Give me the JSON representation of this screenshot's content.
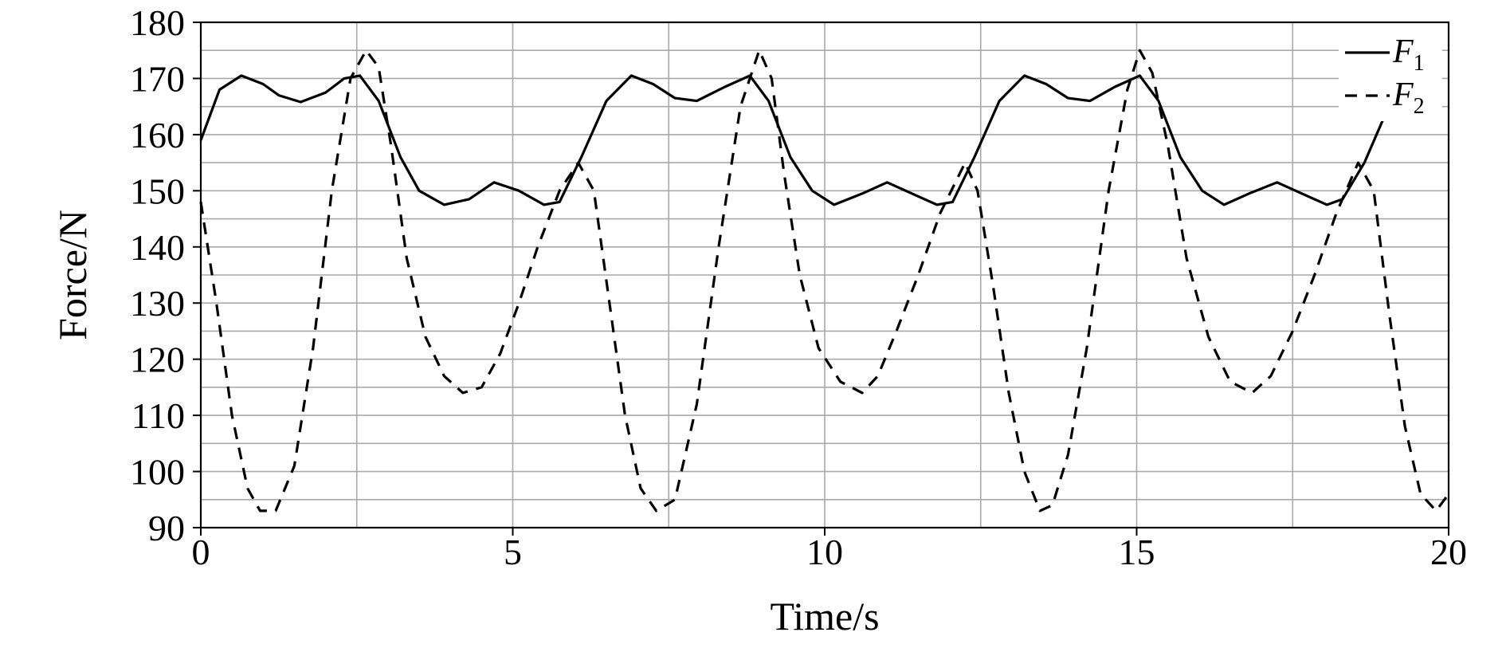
{
  "chart_data": {
    "type": "line",
    "title": "",
    "xlabel": "Time/s",
    "ylabel": "Force/N",
    "xlim": [
      0,
      20
    ],
    "ylim": [
      90,
      180
    ],
    "x_ticks": [
      0,
      5,
      10,
      15,
      20
    ],
    "x_tick_labels": [
      "0",
      "5",
      "10",
      "15",
      "20"
    ],
    "y_ticks": [
      90,
      100,
      110,
      120,
      130,
      140,
      150,
      160,
      170,
      180
    ],
    "y_tick_labels": [
      "90",
      "100",
      "110",
      "120",
      "130",
      "140",
      "150",
      "160",
      "170",
      "180"
    ],
    "grid": true,
    "legend_position": "top-right",
    "series": [
      {
        "name": "F",
        "name_subscript": "1",
        "style": "solid",
        "color": "#000000",
        "x": [
          0,
          0.3,
          0.65,
          1.0,
          1.25,
          1.6,
          2.0,
          2.3,
          2.55,
          2.85,
          3.2,
          3.5,
          3.9,
          4.3,
          4.7,
          5.1,
          5.5,
          5.75,
          6.1,
          6.5,
          6.9,
          7.25,
          7.6,
          7.95,
          8.4,
          8.8,
          9.1,
          9.45,
          9.8,
          10.15,
          10.6,
          11.0,
          11.4,
          11.8,
          12.05,
          12.4,
          12.8,
          13.2,
          13.55,
          13.9,
          14.25,
          14.65,
          15.05,
          15.35,
          15.7,
          16.05,
          16.4,
          16.8,
          17.25,
          17.65,
          18.05,
          18.3,
          18.65,
          19.0
        ],
        "y": [
          159,
          168,
          170.5,
          169,
          167,
          165.8,
          167.5,
          170,
          170.5,
          166,
          156,
          150,
          147.5,
          148.5,
          151.5,
          150,
          147.5,
          148,
          156,
          166,
          170.5,
          169,
          166.5,
          166,
          168.5,
          170.5,
          166,
          156,
          150,
          147.5,
          149.5,
          151.5,
          149.5,
          147.5,
          148,
          156,
          166,
          170.5,
          169,
          166.5,
          166,
          168.5,
          170.5,
          166,
          156,
          150,
          147.5,
          149.5,
          151.5,
          149.5,
          147.5,
          148.5,
          155,
          164
        ]
      },
      {
        "name": "F",
        "name_subscript": "2",
        "style": "dashed",
        "color": "#000000",
        "x": [
          0,
          0.25,
          0.5,
          0.75,
          0.95,
          1.2,
          1.5,
          1.8,
          2.1,
          2.4,
          2.65,
          2.85,
          3.05,
          3.3,
          3.6,
          3.9,
          4.2,
          4.5,
          4.8,
          5.1,
          5.4,
          5.75,
          6.05,
          6.3,
          6.55,
          6.8,
          7.05,
          7.3,
          7.6,
          7.95,
          8.3,
          8.65,
          8.95,
          9.15,
          9.35,
          9.6,
          9.9,
          10.25,
          10.6,
          10.85,
          11.15,
          11.5,
          11.85,
          12.25,
          12.45,
          12.7,
          12.95,
          13.2,
          13.45,
          13.65,
          13.9,
          14.2,
          14.55,
          14.85,
          15.05,
          15.25,
          15.5,
          15.8,
          16.15,
          16.5,
          16.85,
          17.15,
          17.5,
          17.85,
          18.2,
          18.55,
          18.8,
          19.05,
          19.3,
          19.55,
          19.8,
          20.0
        ],
        "y": [
          148,
          130,
          110,
          97,
          93,
          93,
          101,
          122,
          150,
          170,
          175,
          172,
          158,
          138,
          124,
          117,
          114,
          115,
          121,
          130,
          140,
          150,
          155,
          150,
          130,
          110,
          97,
          93,
          95,
          112,
          140,
          165,
          175,
          170,
          153,
          135,
          122,
          116,
          114,
          117,
          125,
          135,
          146,
          155,
          150,
          133,
          114,
          100,
          93,
          94,
          103,
          122,
          150,
          168,
          175,
          171,
          158,
          138,
          124,
          116,
          114,
          117,
          125,
          135,
          146,
          155,
          150,
          128,
          108,
          96,
          93,
          96
        ]
      }
    ]
  }
}
